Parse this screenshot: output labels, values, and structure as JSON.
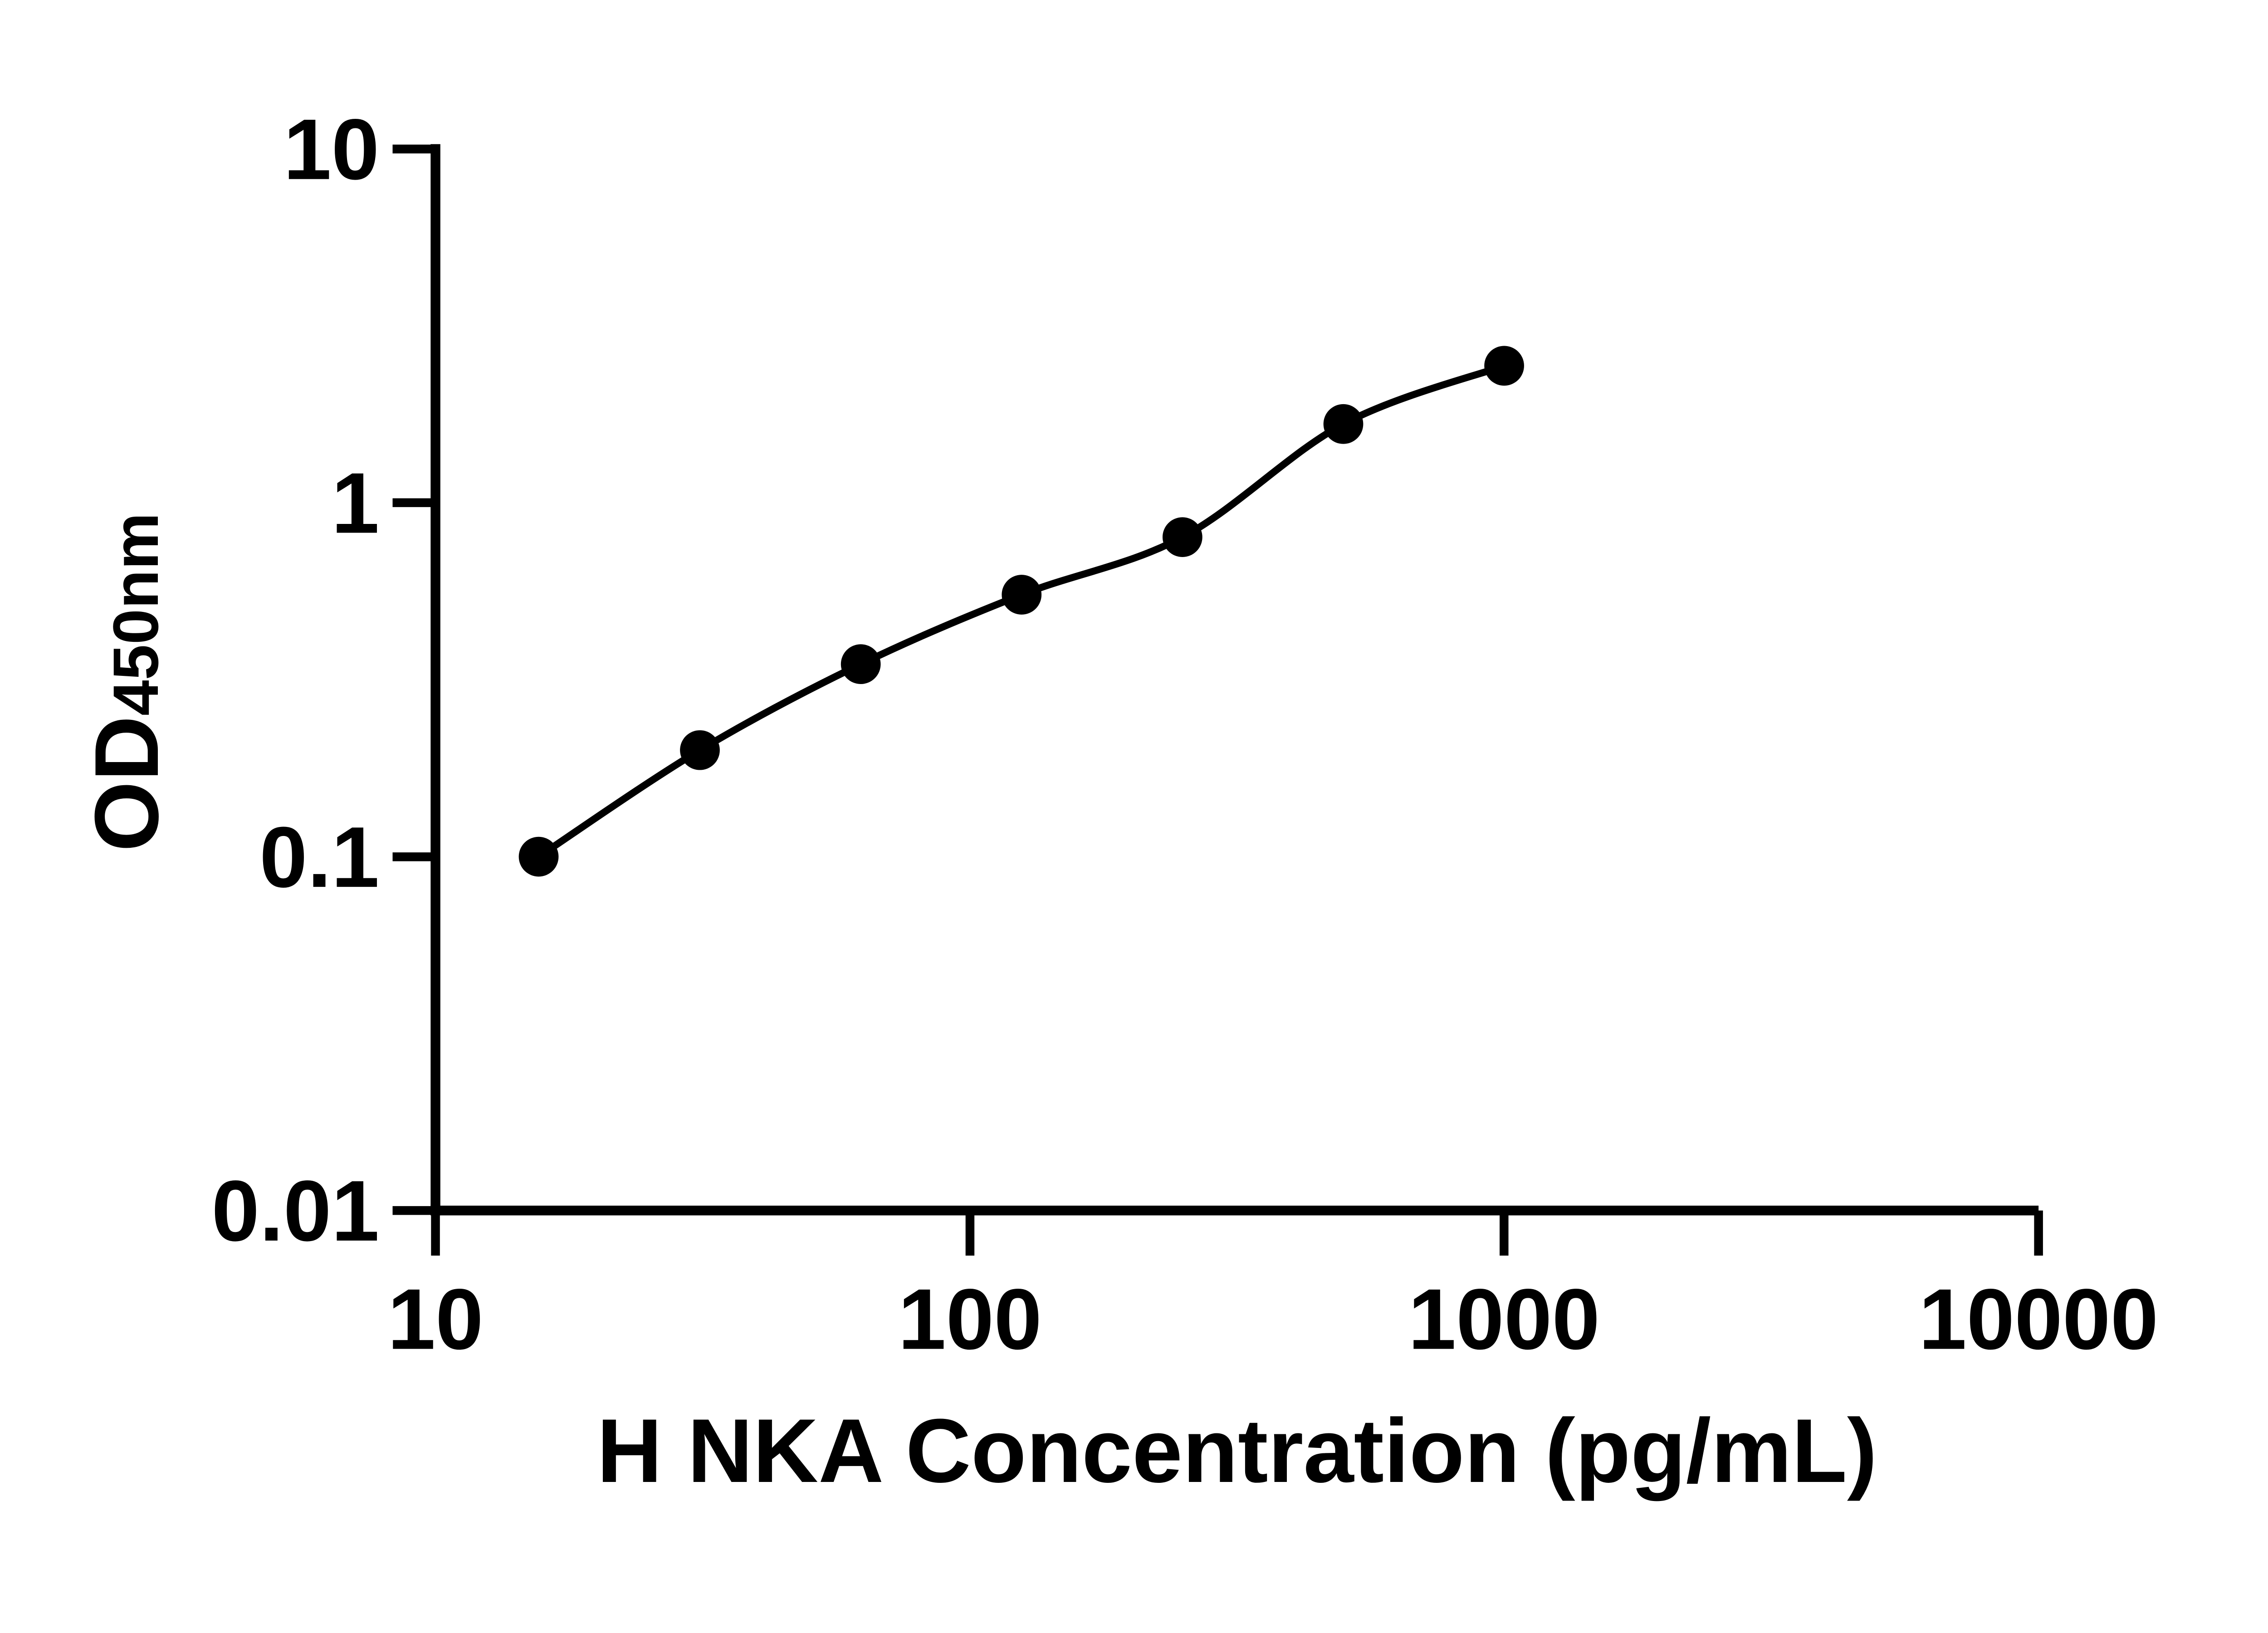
{
  "figure": {
    "background": "#ffffff",
    "ink_color": "#000000"
  },
  "chart_data": {
    "type": "scatter",
    "title": "",
    "xlabel": "H NKA Concentration (pg/mL)",
    "ylabel_main": "OD",
    "ylabel_sub": "450nm",
    "x_scale": "log10",
    "y_scale": "log10",
    "xlim": [
      10,
      10000
    ],
    "ylim": [
      0.01,
      10
    ],
    "x_ticks": [
      10,
      100,
      1000,
      10000
    ],
    "x_tick_labels": [
      "10",
      "100",
      "1000",
      "10000"
    ],
    "y_ticks": [
      10,
      1,
      0.1,
      0.01
    ],
    "y_tick_labels": [
      "10",
      "1",
      "0.1",
      "0.01"
    ],
    "grid": false,
    "legend": "none",
    "series": [
      {
        "marker": "filled-circle",
        "marker_color": "#000000",
        "line": "smooth-fit-curve",
        "line_color": "#000000",
        "x": [
          15.6,
          31.25,
          62.5,
          125,
          250,
          500,
          1000
        ],
        "y": [
          0.1,
          0.2,
          0.35,
          0.55,
          0.8,
          1.67,
          2.44
        ]
      }
    ]
  }
}
